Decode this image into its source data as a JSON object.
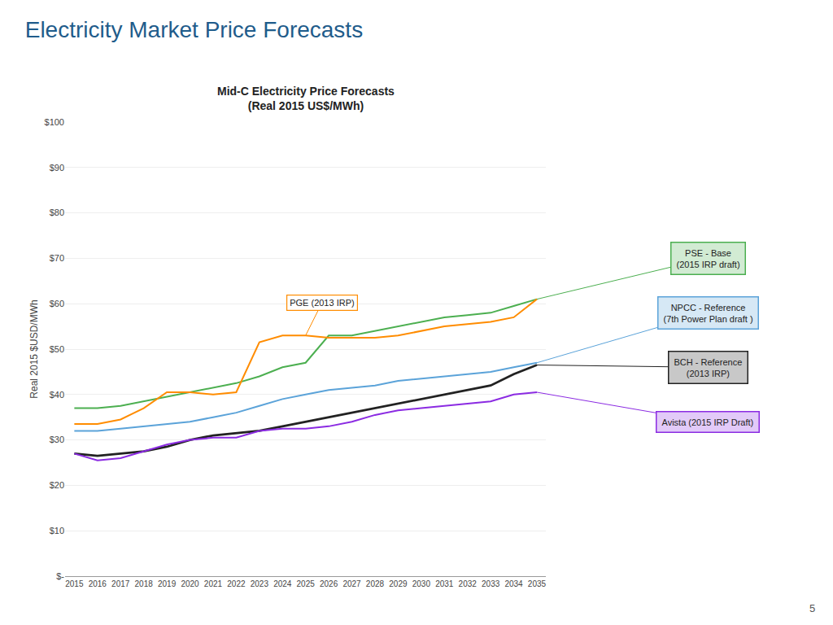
{
  "chart_data": {
    "type": "line",
    "title": "Electricity Market Price Forecasts",
    "subtitle": "Mid-C Electricity Price Forecasts\n(Real 2015 US$/MWh)",
    "ylabel": "Real 2015 $USD/MWh",
    "page_number": "5",
    "x": [
      2015,
      2016,
      2017,
      2018,
      2019,
      2020,
      2021,
      2022,
      2023,
      2024,
      2025,
      2026,
      2027,
      2028,
      2029,
      2030,
      2031,
      2032,
      2033,
      2034,
      2035
    ],
    "series": [
      {
        "name": "PSE - Base\n(2015 IRP draft)",
        "color": "#4CAF50",
        "values": [
          37,
          37,
          37.5,
          38.5,
          39.5,
          40.5,
          41.5,
          42.5,
          44,
          46,
          47,
          53,
          53,
          54,
          55,
          56,
          57,
          57.5,
          58,
          59.5,
          61
        ]
      },
      {
        "name": "NPCC - Reference\n(7th Power Plan draft )",
        "color": "#5BA3D9",
        "values": [
          32,
          32,
          32.5,
          33,
          33.5,
          34,
          35,
          36,
          37.5,
          39,
          40,
          41,
          41.5,
          42,
          43,
          43.5,
          44,
          44.5,
          45,
          46,
          47
        ]
      },
      {
        "name": "BCH - Reference\n(2013 IRP)",
        "color": "#222222",
        "values": [
          27,
          26.5,
          27,
          27.5,
          28.5,
          30,
          31,
          31.5,
          32,
          33,
          34,
          35,
          36,
          37,
          38,
          39,
          40,
          41,
          42,
          44.5,
          46.5
        ]
      },
      {
        "name": "Avista (2015 IRP Draft)",
        "color": "#8B2BE2",
        "values": [
          27,
          25.5,
          26,
          27.5,
          29,
          30,
          30.5,
          30.5,
          32,
          32.5,
          32.5,
          33,
          34,
          35.5,
          36.5,
          37,
          37.5,
          38,
          38.5,
          40,
          40.5
        ]
      },
      {
        "name": "PGE (2013 IRP)",
        "color": "#FF8C00",
        "values": [
          33.5,
          33.5,
          34.5,
          37,
          40.5,
          40.5,
          40,
          40.5,
          51.5,
          53,
          53,
          52.5,
          52.5,
          52.5,
          53,
          54,
          55,
          55.5,
          56,
          57,
          61
        ]
      }
    ],
    "xlim": [
      2014.6,
      2035.4
    ],
    "xticks": [
      2015,
      2016,
      2017,
      2018,
      2019,
      2020,
      2021,
      2022,
      2023,
      2024,
      2025,
      2026,
      2027,
      2028,
      2029,
      2030,
      2031,
      2032,
      2033,
      2034,
      2035
    ],
    "ylim": [
      0,
      100
    ],
    "yticks": [
      {
        "value": 0,
        "label": "$-"
      },
      {
        "value": 10,
        "label": "$10"
      },
      {
        "value": 20,
        "label": "$20"
      },
      {
        "value": 30,
        "label": "$30"
      },
      {
        "value": 40,
        "label": "$40"
      },
      {
        "value": 50,
        "label": "$50"
      },
      {
        "value": 60,
        "label": "$60"
      },
      {
        "value": 70,
        "label": "$70"
      },
      {
        "value": 80,
        "label": "$80"
      },
      {
        "value": 90,
        "label": "$90"
      },
      {
        "value": 100,
        "label": "$100"
      }
    ],
    "grid": "y"
  }
}
